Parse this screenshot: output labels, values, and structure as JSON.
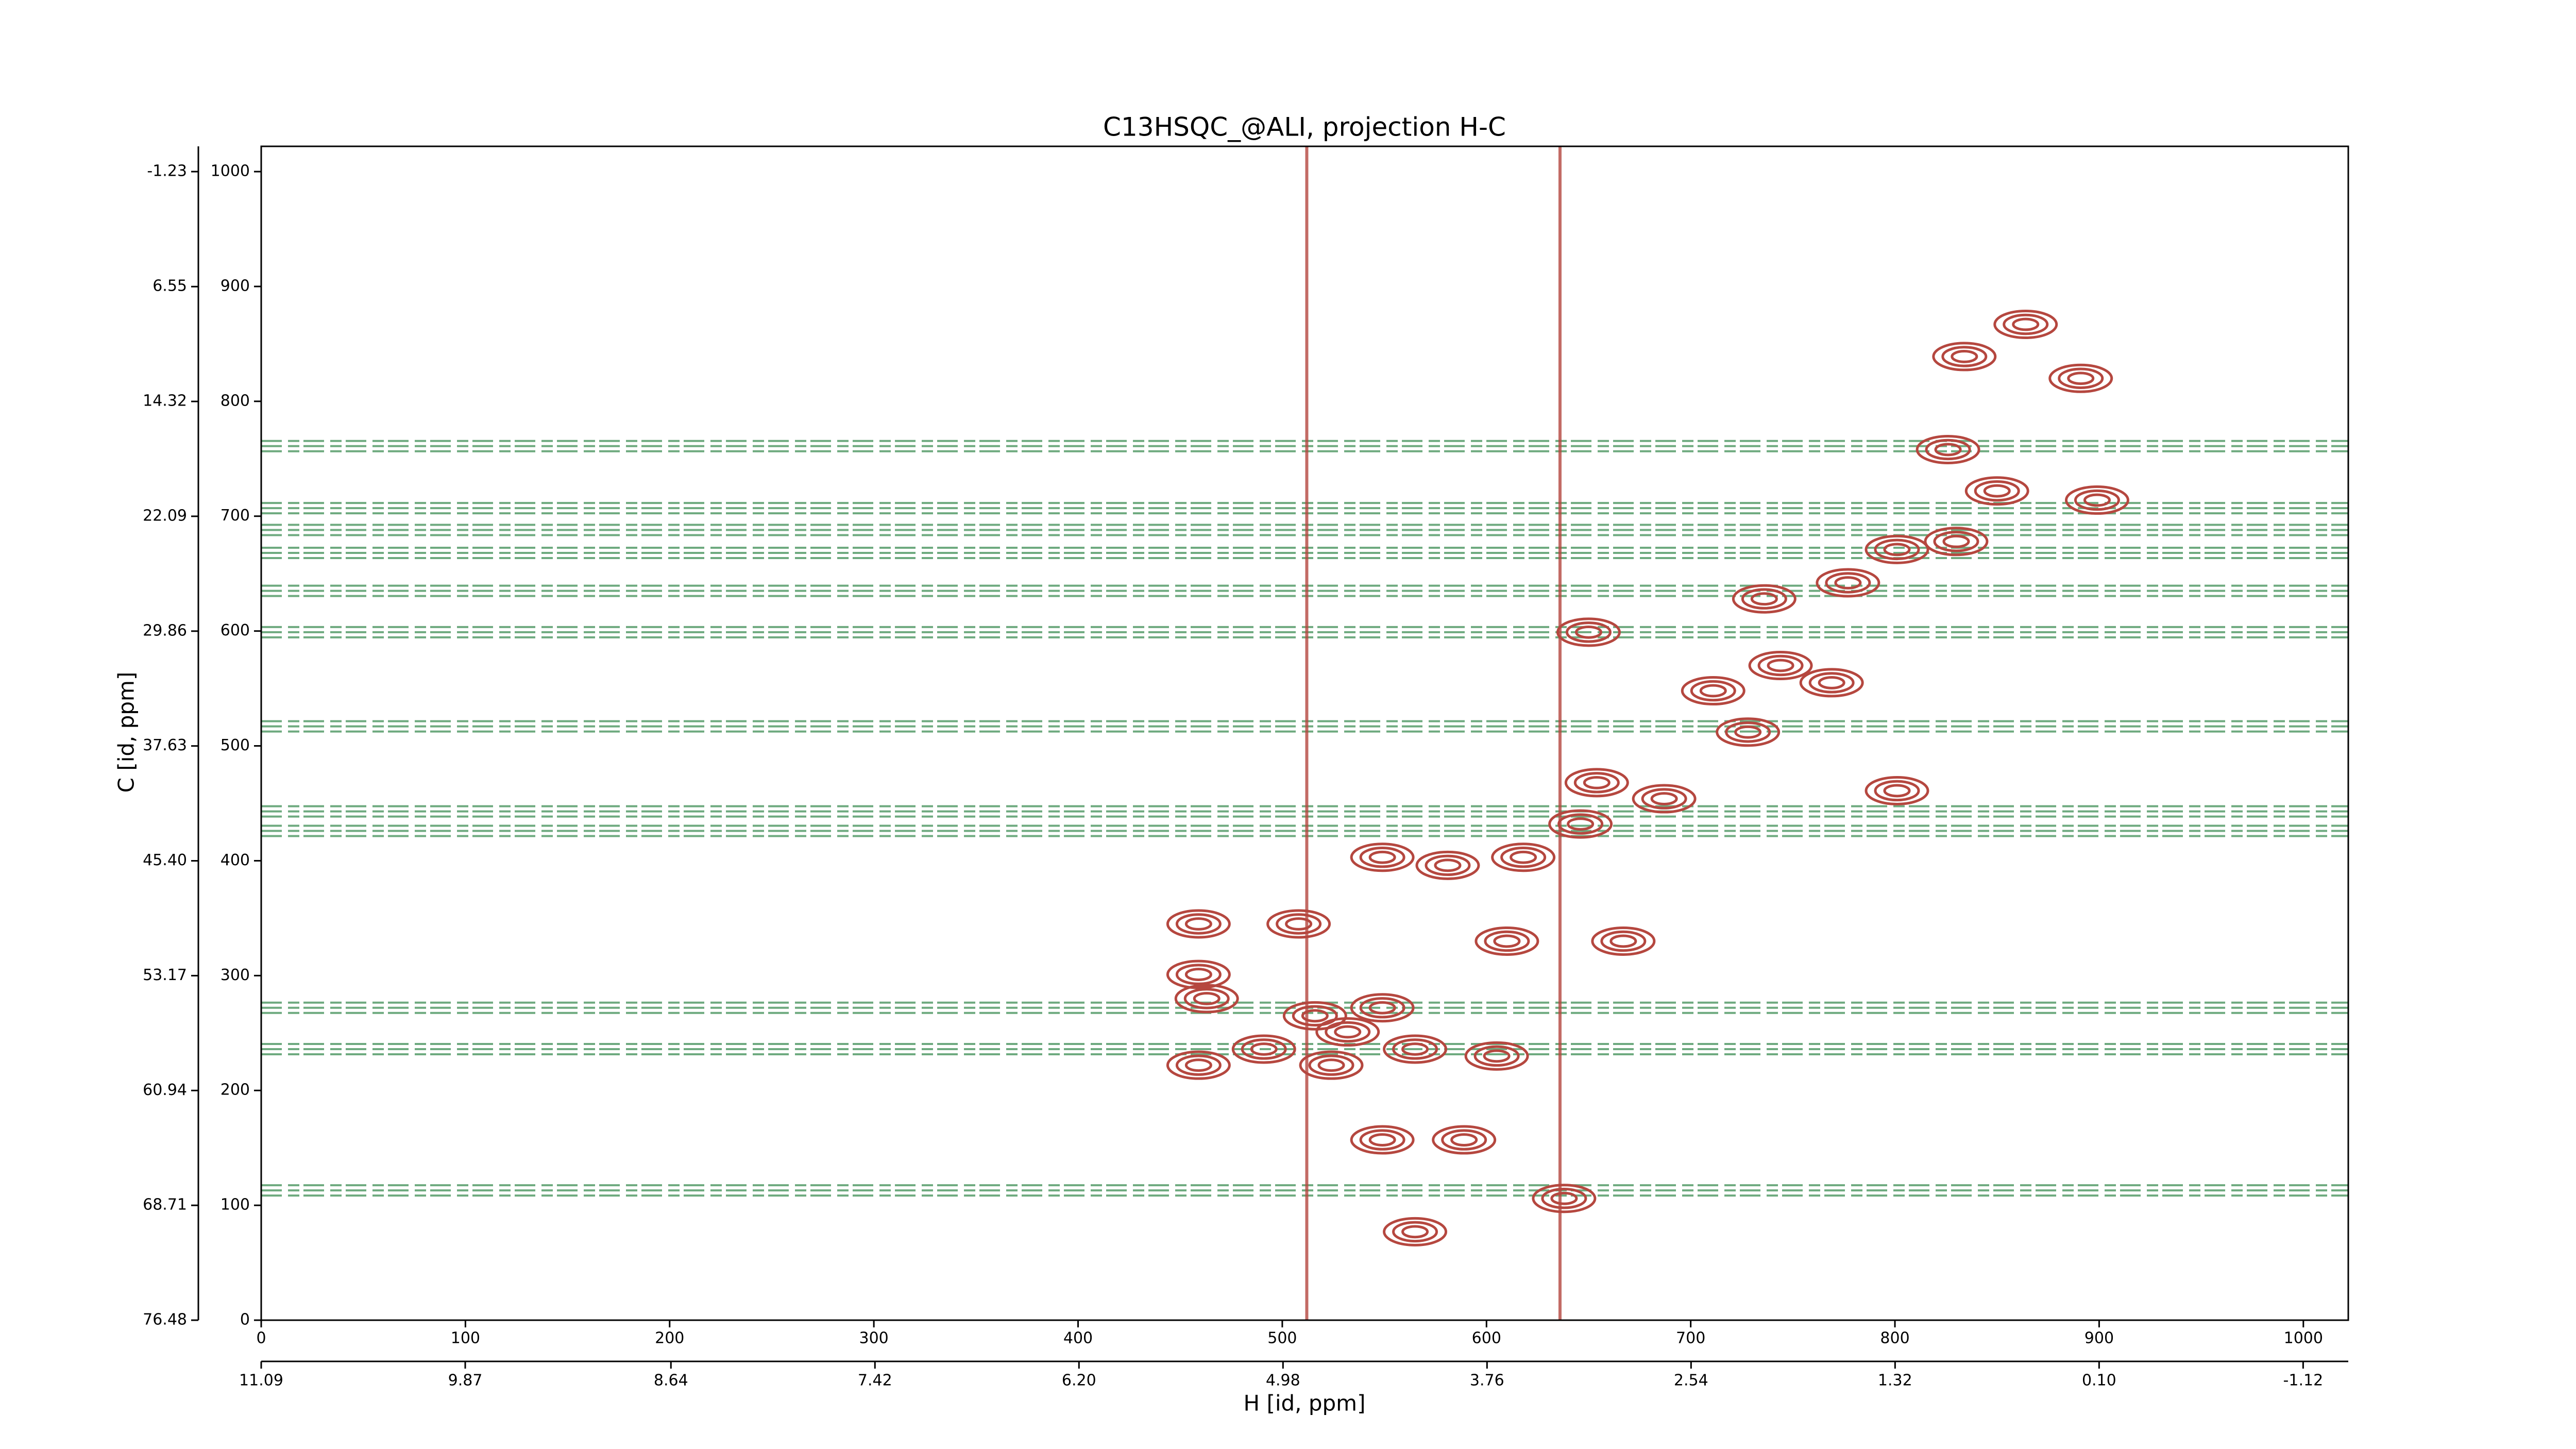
{
  "chart_data": {
    "type": "contour",
    "title": "C13HSQC_@ALI, projection H-C",
    "xlabel": "H [id, ppm]",
    "ylabel": "C [id, ppm]",
    "xlim": [
      0,
      1022
    ],
    "xticks": [
      0,
      100,
      200,
      300,
      400,
      500,
      600,
      700,
      800,
      900,
      1000
    ],
    "x2lim": [
      11.09,
      -1.39
    ],
    "x2ticks": [
      11.09,
      9.87,
      8.64,
      7.42,
      {
        "value": 6.2,
        "label": "6.20"
      },
      4.98,
      3.76,
      2.54,
      1.32,
      {
        "value": 0.1,
        "label": "0.10"
      },
      -1.12
    ],
    "ylim": [
      0,
      1022
    ],
    "yticks": [
      0,
      100,
      200,
      300,
      400,
      500,
      600,
      700,
      800,
      900,
      1000
    ],
    "y2lim": [
      76.48,
      -2.94
    ],
    "y2ticks": [
      -1.23,
      6.55,
      14.32,
      22.09,
      29.86,
      37.63,
      {
        "value": 45.4,
        "label": "45.40"
      },
      53.17,
      60.94,
      68.71,
      76.48
    ],
    "peaks": {
      "color": "#b5473f",
      "x": [
        834,
        864,
        891,
        826,
        850,
        830,
        899,
        801,
        736,
        777,
        744,
        711,
        769,
        728,
        650,
        654,
        687,
        646,
        618,
        549,
        581,
        459,
        463,
        516,
        532,
        549,
        491,
        459,
        565,
        524,
        610,
        667,
        459,
        508,
        549,
        589,
        565,
        638,
        801,
        605
      ],
      "y": [
        839,
        867,
        820,
        758,
        722,
        678,
        714,
        671,
        628,
        642,
        570,
        548,
        555,
        512,
        599,
        468,
        454,
        432,
        403,
        403,
        396,
        345,
        280,
        265,
        251,
        272,
        236,
        222,
        236,
        222,
        330,
        330,
        301,
        345,
        157,
        157,
        77,
        106,
        461,
        230
      ]
    },
    "ridges": {
      "color": "#3e8e55",
      "y": [
        761,
        707,
        688,
        668,
        635,
        599,
        517,
        443,
        426,
        272,
        236,
        113
      ]
    },
    "vertical_ridges": {
      "color": "#b5473f",
      "x": [
        512,
        636
      ]
    }
  }
}
